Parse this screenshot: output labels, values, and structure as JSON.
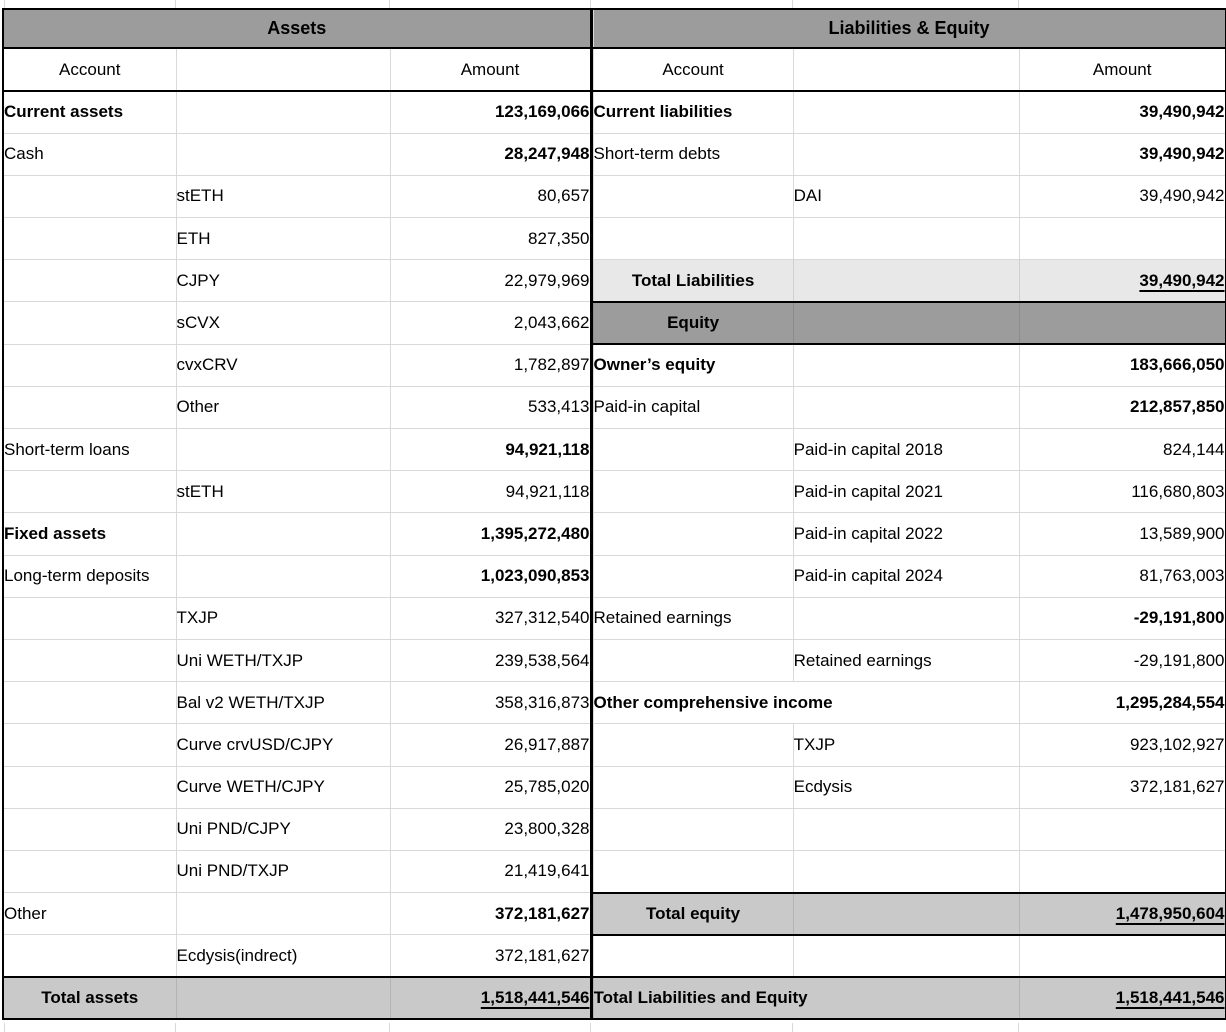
{
  "colors": {
    "section_header_bg": "#9c9c9c",
    "total_row_bg": "#c9c9c9",
    "subtotal_row_bg": "#e8e8e8",
    "gridline": "#d9d9d9",
    "border": "#000000"
  },
  "assets": {
    "title": "Assets",
    "columns": {
      "account": "Account",
      "amount": "Amount"
    },
    "rows": [
      {
        "label1": "Current assets",
        "amount": "123,169,066",
        "bold_label": true,
        "bold_amount": true
      },
      {
        "label1": "Cash",
        "amount": "28,247,948",
        "bold_amount": true
      },
      {
        "label2": "stETH",
        "amount": "80,657"
      },
      {
        "label2": "ETH",
        "amount": "827,350"
      },
      {
        "label2": "CJPY",
        "amount": "22,979,969"
      },
      {
        "label2": "sCVX",
        "amount": "2,043,662"
      },
      {
        "label2": "cvxCRV",
        "amount": "1,782,897"
      },
      {
        "label2": "Other",
        "amount": "533,413"
      },
      {
        "label1": "Short-term loans",
        "amount": "94,921,118",
        "bold_amount": true
      },
      {
        "label2": "stETH",
        "amount": "94,921,118"
      },
      {
        "label1": "Fixed assets",
        "amount": "1,395,272,480",
        "bold_label": true,
        "bold_amount": true
      },
      {
        "label1": "Long-term deposits",
        "amount": "1,023,090,853",
        "bold_amount": true
      },
      {
        "label2": "TXJP",
        "amount": "327,312,540"
      },
      {
        "label2": "Uni WETH/TXJP",
        "amount": "239,538,564"
      },
      {
        "label2": "Bal v2 WETH/TXJP",
        "amount": "358,316,873"
      },
      {
        "label2": "Curve crvUSD/CJPY",
        "amount": "26,917,887"
      },
      {
        "label2": "Curve WETH/CJPY",
        "amount": "25,785,020"
      },
      {
        "label2": "Uni PND/CJPY",
        "amount": "23,800,328"
      },
      {
        "label2": "Uni PND/TXJP",
        "amount": "21,419,641"
      },
      {
        "label1": "Other",
        "amount": "372,181,627",
        "bold_amount": true
      },
      {
        "label2": "Ecdysis(indrect)",
        "amount": "372,181,627"
      },
      {
        "label1": "Total assets",
        "amount": "1,518,441,546",
        "bold_label": true,
        "bold_amount": true,
        "underline_amount": true,
        "center_label": true,
        "bg": "total",
        "border_top_black": true
      }
    ]
  },
  "liabilities_equity": {
    "title": "Liabilities & Equity",
    "columns": {
      "account": "Account",
      "amount": "Amount"
    },
    "rows": [
      {
        "label1": "Current liabilities",
        "amount": "39,490,942",
        "bold_label": true,
        "bold_amount": true
      },
      {
        "label1": "Short-term debts",
        "amount": "39,490,942",
        "bold_amount": true
      },
      {
        "label2": "DAI",
        "amount": "39,490,942"
      },
      {},
      {
        "label1": "Total Liabilities",
        "amount": "39,490,942",
        "bold_label": true,
        "bold_amount": true,
        "underline_amount": true,
        "center_label": true,
        "bg": "subtotal",
        "border_bottom_black": true
      },
      {
        "label1": "Equity",
        "bold_label": true,
        "center_label": true,
        "bg": "section",
        "border_bottom_black": true
      },
      {
        "label1": "Owner’s equity",
        "amount": "183,666,050",
        "bold_label": true,
        "bold_amount": true
      },
      {
        "label1": "Paid-in capital",
        "amount": "212,857,850",
        "bold_amount": true
      },
      {
        "label2": "Paid-in capital 2018",
        "amount": "824,144"
      },
      {
        "label2": "Paid-in capital 2021",
        "amount": "116,680,803"
      },
      {
        "label2": "Paid-in capital 2022",
        "amount": "13,589,900"
      },
      {
        "label2": "Paid-in capital 2024",
        "amount": "81,763,003"
      },
      {
        "label1": "Retained earnings",
        "amount": "-29,191,800",
        "bold_amount": true
      },
      {
        "label2": "Retained earnings",
        "amount": "-29,191,800"
      },
      {
        "label1": "Other comprehensive income",
        "amount": "1,295,284,554",
        "bold_label": true,
        "bold_amount": true,
        "merge_label": true
      },
      {
        "label2": "TXJP",
        "amount": "923,102,927"
      },
      {
        "label2": "Ecdysis",
        "amount": "372,181,627"
      },
      {},
      {},
      {
        "label1": "Total equity",
        "amount": "1,478,950,604",
        "bold_label": true,
        "bold_amount": true,
        "underline_amount": true,
        "center_label": true,
        "bg": "total",
        "border_top_black": true,
        "border_bottom_black": true
      },
      {},
      {
        "label1": "Total Liabilities and Equity",
        "amount": "1,518,441,546",
        "bold_label": true,
        "bold_amount": true,
        "underline_amount": true,
        "bg": "total",
        "border_top_black": true,
        "merge_label": true
      }
    ]
  }
}
